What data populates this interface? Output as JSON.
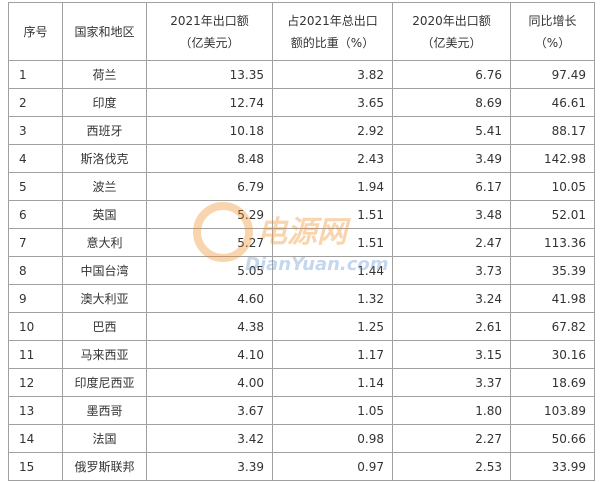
{
  "table": {
    "header": [
      [
        "序号"
      ],
      [
        "国家和地区"
      ],
      [
        "2021年出口额",
        "（亿美元）"
      ],
      [
        "占2021年总出口",
        "额的比重（%）"
      ],
      [
        "2020年出口额",
        "（亿美元）"
      ],
      [
        "同比增长",
        "（%）"
      ]
    ],
    "rows": [
      [
        "1",
        "荷兰",
        "13.35",
        "3.82",
        "6.76",
        "97.49"
      ],
      [
        "2",
        "印度",
        "12.74",
        "3.65",
        "8.69",
        "46.61"
      ],
      [
        "3",
        "西班牙",
        "10.18",
        "2.92",
        "5.41",
        "88.17"
      ],
      [
        "4",
        "斯洛伐克",
        "8.48",
        "2.43",
        "3.49",
        "142.98"
      ],
      [
        "5",
        "波兰",
        "6.79",
        "1.94",
        "6.17",
        "10.05"
      ],
      [
        "6",
        "英国",
        "5.29",
        "1.51",
        "3.48",
        "52.01"
      ],
      [
        "7",
        "意大利",
        "5.27",
        "1.51",
        "2.47",
        "113.36"
      ],
      [
        "8",
        "中国台湾",
        "5.05",
        "1.44",
        "3.73",
        "35.39"
      ],
      [
        "9",
        "澳大利亚",
        "4.60",
        "1.32",
        "3.24",
        "41.98"
      ],
      [
        "10",
        "巴西",
        "4.38",
        "1.25",
        "2.61",
        "67.82"
      ],
      [
        "11",
        "马来西亚",
        "4.10",
        "1.17",
        "3.15",
        "30.16"
      ],
      [
        "12",
        "印度尼西亚",
        "4.00",
        "1.14",
        "3.37",
        "18.69"
      ],
      [
        "13",
        "墨西哥",
        "3.67",
        "1.05",
        "1.80",
        "103.89"
      ],
      [
        "14",
        "法国",
        "3.42",
        "0.98",
        "2.27",
        "50.66"
      ],
      [
        "15",
        "俄罗斯联邦",
        "3.39",
        "0.97",
        "2.53",
        "33.99"
      ]
    ]
  },
  "watermark": {
    "name": "电源网",
    "url": "DianYuan.com"
  }
}
